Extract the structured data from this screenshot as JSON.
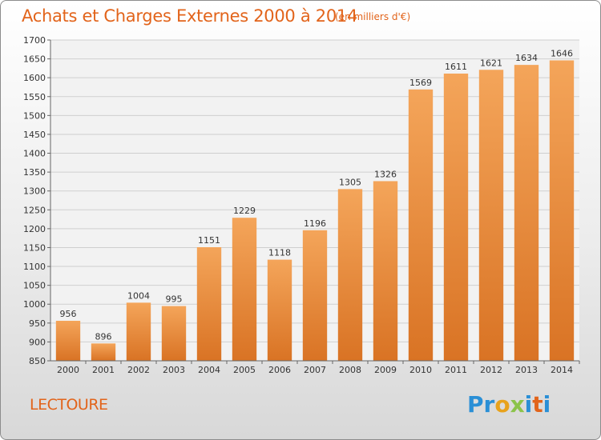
{
  "title": "Achats et Charges Externes 2000 à 2014",
  "subtitle": "(en milliers d'€)",
  "commune": "LECTOURE",
  "logo": {
    "text": "Proxiti",
    "letters": [
      "P",
      "r",
      "o",
      "x",
      "i",
      "t",
      "i"
    ],
    "colors": [
      "#2a8fd6",
      "#2a8fd6",
      "#e8a21c",
      "#8bc34a",
      "#2a8fd6",
      "#e2641b",
      "#2a8fd6"
    ]
  },
  "colors": {
    "bar_light": "#f4a55a",
    "bar_dark": "#d97324",
    "title": "#e2641b",
    "grid": "#cfcfcf"
  },
  "chart_data": {
    "type": "bar",
    "categories": [
      "2000",
      "2001",
      "2002",
      "2003",
      "2004",
      "2005",
      "2006",
      "2007",
      "2008",
      "2009",
      "2010",
      "2011",
      "2012",
      "2013",
      "2014"
    ],
    "values": [
      956,
      896,
      1004,
      995,
      1151,
      1229,
      1118,
      1196,
      1305,
      1326,
      1569,
      1611,
      1621,
      1634,
      1646
    ],
    "ylim": [
      850,
      1700
    ],
    "yticks": [
      850,
      900,
      950,
      1000,
      1050,
      1100,
      1150,
      1200,
      1250,
      1300,
      1350,
      1400,
      1450,
      1500,
      1550,
      1600,
      1650,
      1700
    ],
    "grid": true,
    "title": "Achats et Charges Externes 2000 à 2014",
    "xlabel": "",
    "ylabel": ""
  }
}
